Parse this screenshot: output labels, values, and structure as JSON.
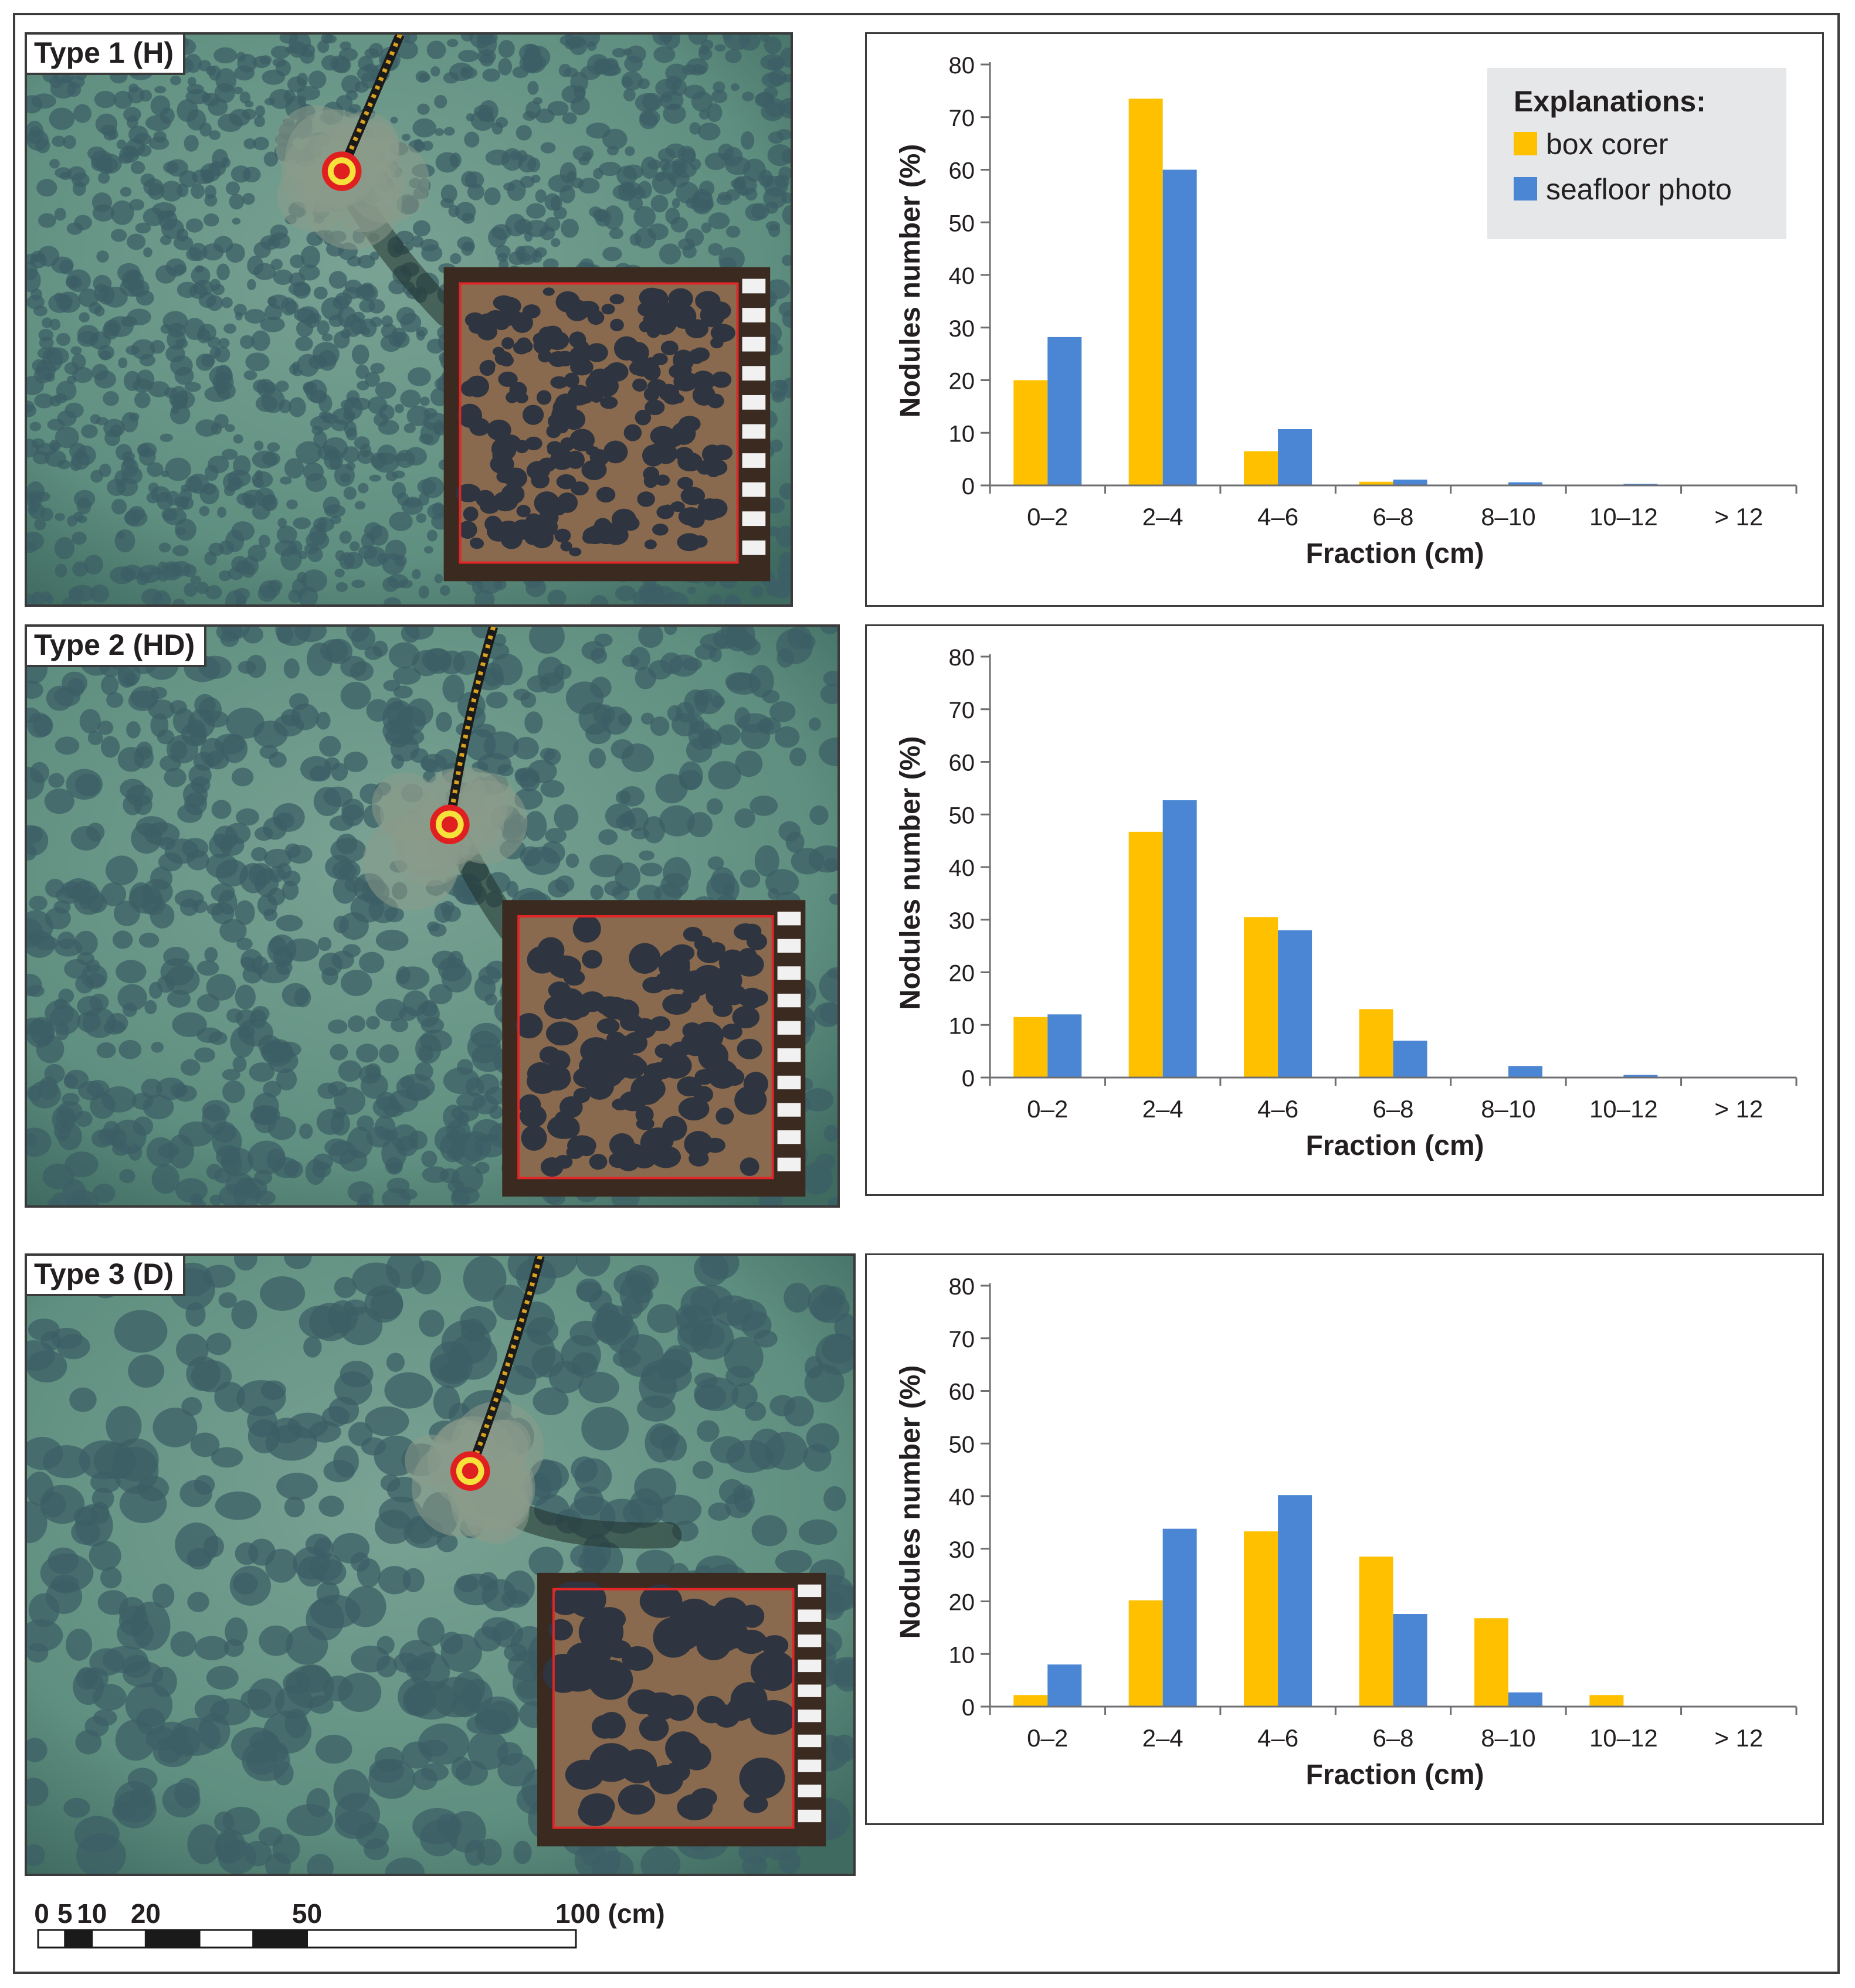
{
  "panels": [
    {
      "label": "Type 1 (H)"
    },
    {
      "label": "Type 2 (HD)"
    },
    {
      "label": "Type 3 (D)"
    }
  ],
  "legend": {
    "title": "Explanations:",
    "items": [
      {
        "name": "box corer",
        "color": "#ffc000"
      },
      {
        "name": "seafloor photo",
        "color": "#4a86d4"
      }
    ]
  },
  "colors": {
    "box_corer": "#ffc000",
    "seafloor_photo": "#4a86d4",
    "seafloor": "#5f8f80",
    "nodule": "#3c5f66",
    "core_sediment": "#8a6a4e"
  },
  "chart_data": [
    {
      "type": "bar",
      "categories": [
        "0–2",
        "2–4",
        "4–6",
        "6–8",
        "8–10",
        "10–12",
        "> 12"
      ],
      "series": [
        {
          "name": "box corer",
          "values": [
            20,
            73.5,
            6.5,
            0.7,
            0,
            0,
            0
          ]
        },
        {
          "name": "seafloor photo",
          "values": [
            28.2,
            60,
            10.7,
            1.1,
            0.6,
            0.3,
            0
          ]
        }
      ],
      "xlabel": "Fraction (cm)",
      "ylabel": "Nodules number (%)",
      "ylim": [
        0,
        80
      ],
      "yticks": [
        0,
        10,
        20,
        30,
        40,
        50,
        60,
        70,
        80
      ],
      "legend": "top-right"
    },
    {
      "type": "bar",
      "categories": [
        "0–2",
        "2–4",
        "4–6",
        "6–8",
        "8–10",
        "10–12",
        "> 12"
      ],
      "series": [
        {
          "name": "box corer",
          "values": [
            11.5,
            46.7,
            30.5,
            13,
            0,
            0,
            0
          ]
        },
        {
          "name": "seafloor photo",
          "values": [
            12,
            52.7,
            28,
            7,
            2.2,
            0.5,
            0
          ]
        }
      ],
      "xlabel": "Fraction (cm)",
      "ylabel": "Nodules number (%)",
      "ylim": [
        0,
        80
      ],
      "yticks": [
        0,
        10,
        20,
        30,
        40,
        50,
        60,
        70,
        80
      ]
    },
    {
      "type": "bar",
      "categories": [
        "0–2",
        "2–4",
        "4–6",
        "6–8",
        "8–10",
        "10–12",
        "> 12"
      ],
      "series": [
        {
          "name": "box corer",
          "values": [
            2.2,
            20.2,
            33.3,
            28.5,
            16.8,
            2.2,
            0
          ]
        },
        {
          "name": "seafloor photo",
          "values": [
            8,
            33.8,
            40.2,
            17.6,
            2.7,
            0,
            0
          ]
        }
      ],
      "xlabel": "Fraction (cm)",
      "ylabel": "Nodules number (%)",
      "ylim": [
        0,
        80
      ],
      "yticks": [
        0,
        10,
        20,
        30,
        40,
        50,
        60,
        70,
        80
      ]
    }
  ],
  "scale_bar": {
    "ticks": [
      "0",
      "5",
      "10",
      "20",
      "50",
      "100 (cm)"
    ],
    "values": [
      0,
      5,
      10,
      20,
      50,
      100
    ]
  }
}
